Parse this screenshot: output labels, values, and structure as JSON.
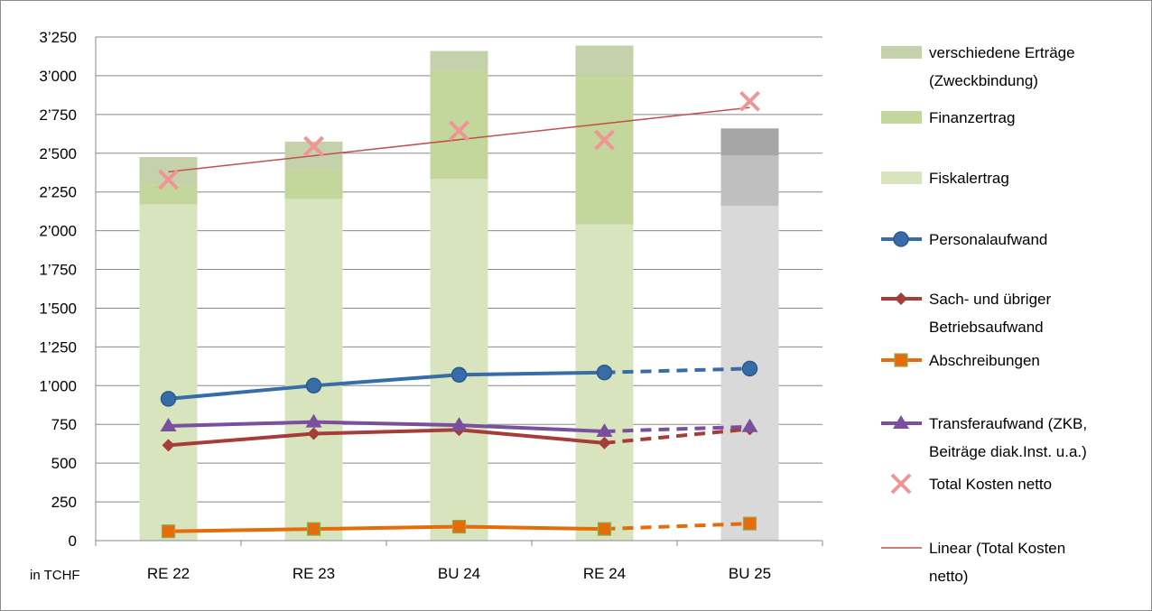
{
  "chart_data": {
    "type": "bar",
    "categories": [
      "RE 22",
      "RE 23",
      "BU 24",
      "RE 24",
      "BU 25"
    ],
    "y_ticks": [
      "0",
      "250",
      "500",
      "750",
      "1’000",
      "1’250",
      "1’500",
      "1’750",
      "2’000",
      "2’250",
      "2’500",
      "2’750",
      "3’000",
      "3’250"
    ],
    "ylim": [
      0,
      3250
    ],
    "unit_label": "in TCHF",
    "grid": true,
    "legend_position": "right",
    "bar_series": [
      {
        "name": "Fiskalertrag",
        "values": [
          2170,
          2205,
          2335,
          2040,
          2160
        ],
        "color": "#d7e4bd",
        "forecast_color": "#d9d9d9"
      },
      {
        "name": "Finanzertrag",
        "values": [
          130,
          190,
          700,
          960,
          325
        ],
        "color": "#c3d69b",
        "forecast_color": "#bfbfbf"
      },
      {
        "name": "verschiedene Erträge (Zweckbindung)",
        "values": [
          175,
          180,
          125,
          195,
          175
        ],
        "color": "#c4d1ab",
        "forecast_color": "#a6a6a6"
      }
    ],
    "line_series": [
      {
        "name": "Personalaufwand",
        "values": [
          915,
          1000,
          1070,
          1085,
          1110
        ],
        "color": "#386ca6",
        "marker": "circle"
      },
      {
        "name": "Sach- und übriger Betriebsaufwand",
        "values": [
          615,
          690,
          715,
          630,
          720
        ],
        "color": "#a53d38",
        "marker": "diamond"
      },
      {
        "name": "Abschreibungen",
        "values": [
          60,
          75,
          90,
          75,
          110
        ],
        "color": "#e46c0a",
        "marker": "square"
      },
      {
        "name": "Transferaufwand (ZKB, Beiträge diak.Inst. u.a.)",
        "values": [
          740,
          765,
          745,
          705,
          735
        ],
        "color": "#7a4f9d",
        "marker": "triangle"
      }
    ],
    "scatter_series": {
      "name": "Total Kosten netto",
      "values": [
        2330,
        2545,
        2645,
        2585,
        2835
      ],
      "color": "#f09595",
      "marker": "x"
    },
    "trendline": {
      "name": "Linear (Total Kosten netto)",
      "start": 2380,
      "end": 2795,
      "color": "#c0504d"
    }
  }
}
